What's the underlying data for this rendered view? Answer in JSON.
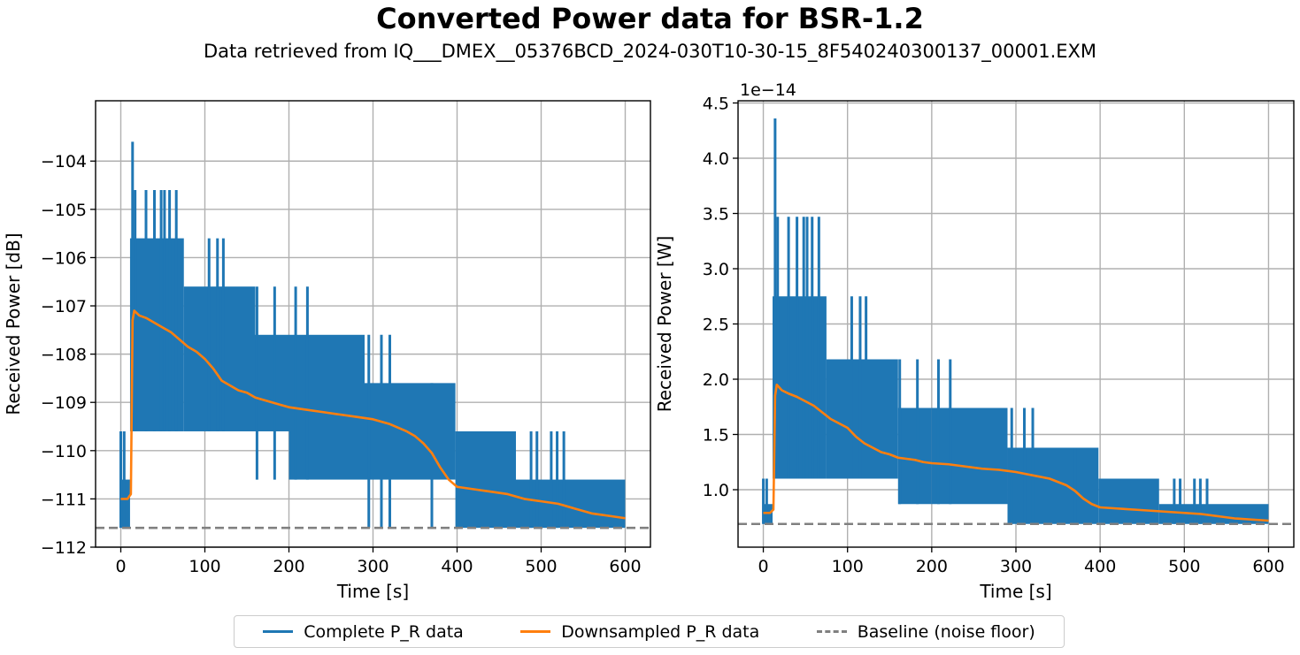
{
  "figure": {
    "title": "Converted Power data for BSR-1.2",
    "subtitle": "Data retrieved from IQ___DMEX__05376BCD_2024-030T10-30-15_8F540240300137_00001.EXM"
  },
  "legend": {
    "items": [
      {
        "label": "Complete P_R data",
        "color": "#1f77b4",
        "style": "solid"
      },
      {
        "label": "Downsampled P_R data",
        "color": "#ff7f0e",
        "style": "solid"
      },
      {
        "label": "Baseline (noise floor)",
        "color": "#808080",
        "style": "dashed"
      }
    ]
  },
  "chart_data": [
    {
      "type": "line",
      "xlabel": "Time [s]",
      "ylabel": "Received Power [dB]",
      "xlim": [
        -30,
        630
      ],
      "ylim": [
        -112,
        -102.75
      ],
      "xticks": [
        0,
        100,
        200,
        300,
        400,
        500,
        600
      ],
      "yticks": [
        -112,
        -111,
        -110,
        -109,
        -108,
        -107,
        -106,
        -105,
        -104
      ],
      "ytick_labels": [
        "−112",
        "−111",
        "−110",
        "−109",
        "−108",
        "−107",
        "−106",
        "−105",
        "−104"
      ],
      "offset_label": "",
      "grid": true,
      "baseline": -111.6,
      "series": [
        {
          "name": "Complete P_R data",
          "color": "#1f77b4",
          "kind": "band",
          "segments": [
            {
              "x": [
                0,
                11
              ],
              "low": -111.6,
              "high": -110.6
            },
            {
              "x": [
                11,
                75
              ],
              "low": -109.6,
              "high": -105.6
            },
            {
              "x": [
                75,
                160
              ],
              "low": -109.6,
              "high": -106.6
            },
            {
              "x": [
                160,
                200
              ],
              "low": -109.6,
              "high": -107.6
            },
            {
              "x": [
                200,
                290
              ],
              "low": -110.6,
              "high": -107.6
            },
            {
              "x": [
                290,
                398
              ],
              "low": -110.6,
              "high": -108.6
            },
            {
              "x": [
                398,
                470
              ],
              "low": -111.6,
              "high": -109.6
            },
            {
              "x": [
                470,
                600
              ],
              "low": -111.6,
              "high": -110.6
            }
          ],
          "spikes": [
            {
              "x": 0,
              "low": -111.6,
              "high": -109.6
            },
            {
              "x": 4,
              "low": -111.6,
              "high": -109.6
            },
            {
              "x": 14,
              "low": -109.6,
              "high": -103.6
            },
            {
              "x": 17,
              "low": -109.6,
              "high": -104.6
            },
            {
              "x": 30,
              "low": -109.6,
              "high": -104.6
            },
            {
              "x": 40,
              "low": -109.6,
              "high": -104.6
            },
            {
              "x": 48,
              "low": -109.6,
              "high": -104.6
            },
            {
              "x": 52,
              "low": -109.6,
              "high": -104.6
            },
            {
              "x": 58,
              "low": -109.6,
              "high": -104.6
            },
            {
              "x": 66,
              "low": -109.6,
              "high": -104.6
            },
            {
              "x": 105,
              "low": -109.6,
              "high": -105.6
            },
            {
              "x": 115,
              "low": -109.6,
              "high": -105.6
            },
            {
              "x": 122,
              "low": -109.6,
              "high": -105.6
            },
            {
              "x": 162,
              "low": -110.6,
              "high": -106.6
            },
            {
              "x": 183,
              "low": -110.6,
              "high": -106.6
            },
            {
              "x": 208,
              "low": -110.6,
              "high": -106.6
            },
            {
              "x": 222,
              "low": -110.6,
              "high": -106.6
            },
            {
              "x": 295,
              "low": -111.6,
              "high": -107.6
            },
            {
              "x": 310,
              "low": -111.6,
              "high": -107.6
            },
            {
              "x": 320,
              "low": -111.6,
              "high": -107.6
            },
            {
              "x": 370,
              "low": -111.6,
              "high": -108.6
            },
            {
              "x": 488,
              "low": -111.6,
              "high": -109.6
            },
            {
              "x": 495,
              "low": -111.6,
              "high": -109.6
            },
            {
              "x": 512,
              "low": -111.6,
              "high": -109.6
            },
            {
              "x": 519,
              "low": -111.6,
              "high": -109.6
            },
            {
              "x": 527,
              "low": -111.6,
              "high": -109.6
            }
          ]
        },
        {
          "name": "Downsampled P_R data",
          "color": "#ff7f0e",
          "kind": "line",
          "x": [
            0,
            8,
            12,
            14,
            16,
            22,
            30,
            40,
            50,
            60,
            70,
            80,
            90,
            100,
            110,
            120,
            130,
            140,
            150,
            160,
            170,
            180,
            190,
            200,
            220,
            240,
            260,
            280,
            300,
            320,
            340,
            350,
            360,
            370,
            380,
            390,
            400,
            420,
            440,
            460,
            480,
            500,
            520,
            540,
            560,
            580,
            600
          ],
          "y": [
            -111.0,
            -111.0,
            -110.9,
            -107.3,
            -107.1,
            -107.2,
            -107.25,
            -107.35,
            -107.45,
            -107.55,
            -107.7,
            -107.85,
            -107.95,
            -108.1,
            -108.3,
            -108.55,
            -108.65,
            -108.75,
            -108.8,
            -108.9,
            -108.95,
            -109.0,
            -109.05,
            -109.1,
            -109.15,
            -109.2,
            -109.25,
            -109.3,
            -109.35,
            -109.45,
            -109.6,
            -109.7,
            -109.85,
            -110.05,
            -110.35,
            -110.6,
            -110.75,
            -110.8,
            -110.85,
            -110.9,
            -111.0,
            -111.05,
            -111.1,
            -111.2,
            -111.3,
            -111.35,
            -111.4
          ]
        }
      ]
    },
    {
      "type": "line",
      "xlabel": "Time [s]",
      "ylabel": "Received Power [W]",
      "xlim": [
        -30,
        630
      ],
      "ylim": [
        0.48,
        4.52
      ],
      "xticks": [
        0,
        100,
        200,
        300,
        400,
        500,
        600
      ],
      "yticks": [
        1.0,
        1.5,
        2.0,
        2.5,
        3.0,
        3.5,
        4.0,
        4.5
      ],
      "ytick_labels": [
        "1.0",
        "1.5",
        "2.0",
        "2.5",
        "3.0",
        "3.5",
        "4.0",
        "4.5"
      ],
      "offset_label": "1e−14",
      "grid": true,
      "baseline": 0.69,
      "series": [
        {
          "name": "Complete P_R data",
          "color": "#1f77b4",
          "kind": "band",
          "segments": [
            {
              "x": [
                0,
                11
              ],
              "low": 0.69,
              "high": 0.87
            },
            {
              "x": [
                11,
                75
              ],
              "low": 1.1,
              "high": 2.75
            },
            {
              "x": [
                75,
                160
              ],
              "low": 1.1,
              "high": 2.18
            },
            {
              "x": [
                160,
                200
              ],
              "low": 0.87,
              "high": 1.74
            },
            {
              "x": [
                200,
                290
              ],
              "low": 0.87,
              "high": 1.74
            },
            {
              "x": [
                290,
                398
              ],
              "low": 0.69,
              "high": 1.38
            },
            {
              "x": [
                398,
                470
              ],
              "low": 0.69,
              "high": 1.1
            },
            {
              "x": [
                470,
                600
              ],
              "low": 0.69,
              "high": 0.87
            }
          ],
          "spikes": [
            {
              "x": 0,
              "low": 0.69,
              "high": 1.1
            },
            {
              "x": 4,
              "low": 0.69,
              "high": 1.1
            },
            {
              "x": 14,
              "low": 1.1,
              "high": 4.36
            },
            {
              "x": 17,
              "low": 1.1,
              "high": 3.47
            },
            {
              "x": 30,
              "low": 1.1,
              "high": 3.47
            },
            {
              "x": 40,
              "low": 1.1,
              "high": 3.47
            },
            {
              "x": 48,
              "low": 1.1,
              "high": 3.47
            },
            {
              "x": 52,
              "low": 1.1,
              "high": 3.47
            },
            {
              "x": 58,
              "low": 1.1,
              "high": 3.47
            },
            {
              "x": 66,
              "low": 1.1,
              "high": 3.47
            },
            {
              "x": 105,
              "low": 1.1,
              "high": 2.75
            },
            {
              "x": 115,
              "low": 1.1,
              "high": 2.75
            },
            {
              "x": 122,
              "low": 1.1,
              "high": 2.75
            },
            {
              "x": 162,
              "low": 0.87,
              "high": 2.18
            },
            {
              "x": 183,
              "low": 0.87,
              "high": 2.18
            },
            {
              "x": 208,
              "low": 0.87,
              "high": 2.18
            },
            {
              "x": 222,
              "low": 0.87,
              "high": 2.18
            },
            {
              "x": 295,
              "low": 0.69,
              "high": 1.74
            },
            {
              "x": 310,
              "low": 0.69,
              "high": 1.74
            },
            {
              "x": 320,
              "low": 0.69,
              "high": 1.74
            },
            {
              "x": 370,
              "low": 0.69,
              "high": 1.38
            },
            {
              "x": 488,
              "low": 0.69,
              "high": 1.1
            },
            {
              "x": 495,
              "low": 0.69,
              "high": 1.1
            },
            {
              "x": 512,
              "low": 0.69,
              "high": 1.1
            },
            {
              "x": 519,
              "low": 0.69,
              "high": 1.1
            },
            {
              "x": 527,
              "low": 0.69,
              "high": 1.1
            }
          ]
        },
        {
          "name": "Downsampled P_R data",
          "color": "#ff7f0e",
          "kind": "line",
          "x": [
            0,
            8,
            12,
            14,
            16,
            22,
            30,
            40,
            50,
            60,
            70,
            80,
            90,
            100,
            110,
            120,
            130,
            140,
            150,
            160,
            170,
            180,
            190,
            200,
            220,
            240,
            260,
            280,
            300,
            320,
            340,
            350,
            360,
            370,
            380,
            390,
            400,
            420,
            440,
            460,
            480,
            500,
            520,
            540,
            560,
            580,
            600
          ],
          "y": [
            0.79,
            0.79,
            0.82,
            1.85,
            1.95,
            1.9,
            1.87,
            1.84,
            1.8,
            1.76,
            1.7,
            1.64,
            1.6,
            1.56,
            1.48,
            1.42,
            1.38,
            1.34,
            1.32,
            1.29,
            1.28,
            1.27,
            1.25,
            1.24,
            1.23,
            1.21,
            1.19,
            1.18,
            1.16,
            1.13,
            1.1,
            1.07,
            1.04,
            0.99,
            0.92,
            0.87,
            0.84,
            0.83,
            0.82,
            0.81,
            0.8,
            0.79,
            0.78,
            0.76,
            0.74,
            0.73,
            0.72
          ]
        }
      ]
    }
  ]
}
